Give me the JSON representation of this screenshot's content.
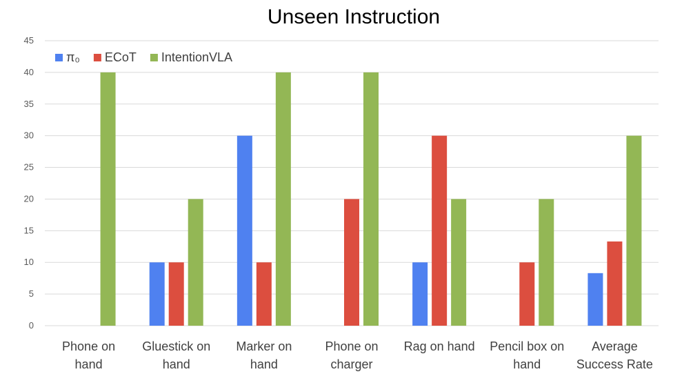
{
  "chart_data": {
    "type": "bar",
    "title": "Unseen Instruction",
    "xlabel": "",
    "ylabel": "",
    "ylim": [
      0,
      45
    ],
    "yticks": [
      0,
      5,
      10,
      15,
      20,
      25,
      30,
      35,
      40,
      45
    ],
    "grid": true,
    "legend_position": "top-left",
    "categories": [
      [
        "Phone on",
        "hand"
      ],
      [
        "Gluestick on",
        "hand"
      ],
      [
        "Marker on",
        "hand"
      ],
      [
        "Phone on",
        "charger"
      ],
      [
        "Rag on hand"
      ],
      [
        "Pencil box on",
        "hand"
      ],
      [
        "Average",
        "Success Rate"
      ]
    ],
    "series": [
      {
        "name": "π₀",
        "color": "#4f81f0",
        "values": [
          0,
          10,
          30,
          0,
          10,
          0,
          8.3
        ]
      },
      {
        "name": "ECoT",
        "color": "#dc4e3f",
        "values": [
          0,
          10,
          10,
          20,
          30,
          10,
          13.3
        ]
      },
      {
        "name": "IntentionVLA",
        "color": "#93b755",
        "values": [
          40,
          20,
          40,
          40,
          20,
          20,
          30
        ]
      }
    ]
  }
}
